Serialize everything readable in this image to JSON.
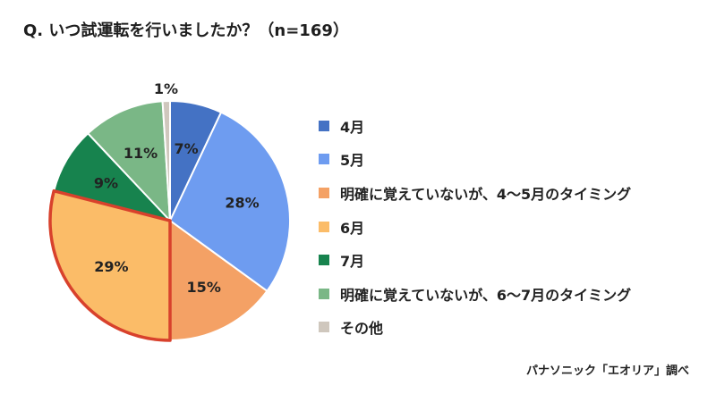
{
  "title": "Q. いつ試運転を行いましたか？（n=169）",
  "source": "パナソニック「エオリア」調べ",
  "chart_data": {
    "type": "pie",
    "categories": [
      "4月",
      "5月",
      "明確に覚えていないが、4〜5月のタイミング",
      "6月",
      "7月",
      "明確に覚えていないが、6〜7月のタイミング",
      "その他"
    ],
    "values": [
      7,
      28,
      15,
      29,
      9,
      11,
      1
    ],
    "data_labels": [
      "7%",
      "28%",
      "15%",
      "29%",
      "9%",
      "11%",
      "1%"
    ],
    "colors": [
      "#4472c4",
      "#6e9cf0",
      "#f4a165",
      "#fbbc68",
      "#17834e",
      "#7ab786",
      "#cfc7bd"
    ],
    "label_colors": [
      "#222222",
      "#222222",
      "#222222",
      "#222222",
      "#222222",
      "#222222",
      "#222222"
    ],
    "highlight_index": 3,
    "highlight_color": "#d8412c",
    "start": "12 o'clock",
    "direction": "clockwise",
    "legend_position": "right"
  }
}
